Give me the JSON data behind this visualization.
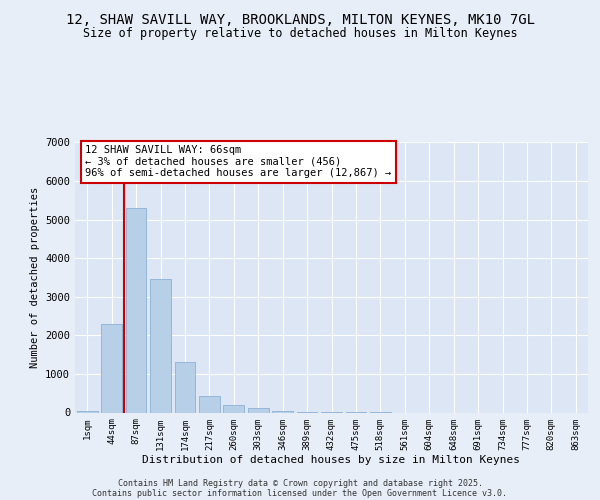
{
  "title1": "12, SHAW SAVILL WAY, BROOKLANDS, MILTON KEYNES, MK10 7GL",
  "title2": "Size of property relative to detached houses in Milton Keynes",
  "xlabel": "Distribution of detached houses by size in Milton Keynes",
  "ylabel": "Number of detached properties",
  "categories": [
    "1sqm",
    "44sqm",
    "87sqm",
    "131sqm",
    "174sqm",
    "217sqm",
    "260sqm",
    "303sqm",
    "346sqm",
    "389sqm",
    "432sqm",
    "475sqm",
    "518sqm",
    "561sqm",
    "604sqm",
    "648sqm",
    "691sqm",
    "734sqm",
    "777sqm",
    "820sqm",
    "863sqm"
  ],
  "values": [
    30,
    2300,
    5300,
    3450,
    1320,
    420,
    200,
    120,
    50,
    15,
    5,
    3,
    1,
    0,
    0,
    0,
    0,
    0,
    0,
    0,
    0
  ],
  "bar_color": "#b8cfe8",
  "bar_edge_color": "#7fa8d0",
  "annotation_text": "12 SHAW SAVILL WAY: 66sqm\n← 3% of detached houses are smaller (456)\n96% of semi-detached houses are larger (12,867) →",
  "annotation_box_color": "#cc0000",
  "ylim": [
    0,
    7000
  ],
  "yticks": [
    0,
    1000,
    2000,
    3000,
    4000,
    5000,
    6000,
    7000
  ],
  "footer1": "Contains HM Land Registry data © Crown copyright and database right 2025.",
  "footer2": "Contains public sector information licensed under the Open Government Licence v3.0.",
  "bg_color": "#e8eef8",
  "plot_bg_color": "#dce6f5",
  "grid_color": "#ffffff",
  "vline_color": "#cc0000",
  "vline_x": 1.5
}
